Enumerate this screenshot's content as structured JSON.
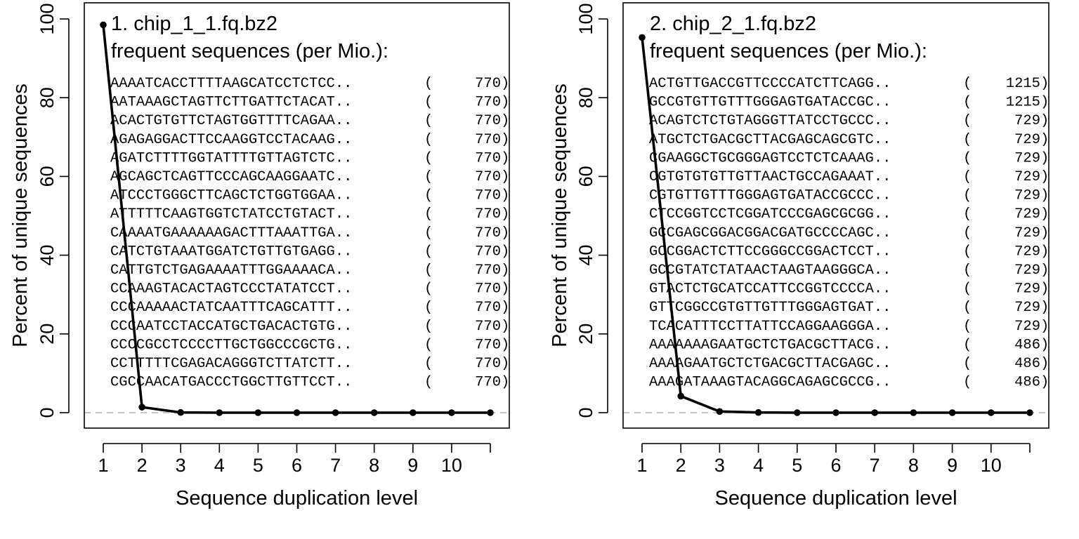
{
  "chart_data": [
    {
      "type": "line",
      "title": "1. chip_1_1.fq.bz2",
      "subtitle": "frequent sequences (per Mio.):",
      "xlabel": "Sequence duplication level",
      "ylabel": "Percent of unique sequences",
      "xlim": [
        1,
        11
      ],
      "ylim": [
        0,
        100
      ],
      "x_ticks": [
        "1",
        "2",
        "3",
        "4",
        "5",
        "6",
        "7",
        "8",
        "9",
        "10"
      ],
      "y_ticks": [
        "0",
        "20",
        "40",
        "60",
        "80",
        "100"
      ],
      "x": [
        1,
        2,
        3,
        4,
        5,
        6,
        7,
        8,
        9,
        10,
        11
      ],
      "values": [
        98.5,
        1.4,
        0.05,
        0,
        0,
        0,
        0,
        0,
        0,
        0,
        0
      ],
      "reference_line_y": 0,
      "sequences": [
        {
          "seq": "AAAATCACCTTTTAAGCATCCTCTCC..",
          "count": "770"
        },
        {
          "seq": "AATAAAGCTAGTTCTTGATTCTACAT..",
          "count": "770"
        },
        {
          "seq": "ACACTGTGTTCTAGTGGTTTTCAGAA..",
          "count": "770"
        },
        {
          "seq": "AGAGAGGACTTCCAAGGTCCTACAAG..",
          "count": "770"
        },
        {
          "seq": "AGATCTTTTGGTATTTTGTTAGTCTC..",
          "count": "770"
        },
        {
          "seq": "AGCAGCTCAGTTCCCAGCAAGGAATC..",
          "count": "770"
        },
        {
          "seq": "ATCCCTGGGCTTCAGCTCTGGTGGAA..",
          "count": "770"
        },
        {
          "seq": "ATTTTTCAAGTGGTCTATCCTGTACT..",
          "count": "770"
        },
        {
          "seq": "CAAAATGAAAAAAGACTTTAAATTGA..",
          "count": "770"
        },
        {
          "seq": "CATCTGTAAATGGATCTGTTGTGAGG..",
          "count": "770"
        },
        {
          "seq": "CATTGTCTGAGAAAATTTGGAAAACA..",
          "count": "770"
        },
        {
          "seq": "CCAAAGTACACTAGTCCCTATATCCT..",
          "count": "770"
        },
        {
          "seq": "CCCAAAAACTATCAATTTCAGCATTT..",
          "count": "770"
        },
        {
          "seq": "CCCAATCCTACCATGCTGACACTGTG..",
          "count": "770"
        },
        {
          "seq": "CCCCGCCTCCCCTTGCTGGCCCGCTG..",
          "count": "770"
        },
        {
          "seq": "CCTTTTTCGAGACAGGGTCTTATCTT..",
          "count": "770"
        },
        {
          "seq": "CGCCAACATGACCCTGGCTTGTTCCT..",
          "count": "770"
        }
      ]
    },
    {
      "type": "line",
      "title": "2. chip_2_1.fq.bz2",
      "subtitle": "frequent sequences (per Mio.):",
      "xlabel": "Sequence duplication level",
      "ylabel": "Percent of unique sequences",
      "xlim": [
        1,
        11
      ],
      "ylim": [
        0,
        100
      ],
      "x_ticks": [
        "1",
        "2",
        "3",
        "4",
        "5",
        "6",
        "7",
        "8",
        "9",
        "10"
      ],
      "y_ticks": [
        "0",
        "20",
        "40",
        "60",
        "80",
        "100"
      ],
      "x": [
        1,
        2,
        3,
        4,
        5,
        6,
        7,
        8,
        9,
        10,
        11
      ],
      "values": [
        95.3,
        4.2,
        0.3,
        0.05,
        0,
        0,
        0,
        0,
        0,
        0,
        0
      ],
      "reference_line_y": 0,
      "sequences": [
        {
          "seq": "ACTGTTGACCGTTCCCCATCTTCAGG..",
          "count": "1215"
        },
        {
          "seq": "GCCGTGTTGTTTGGGAGTGATACCGC..",
          "count": "1215"
        },
        {
          "seq": "ACAGTCTCTGTAGGGTTATCCTGCCC..",
          "count": "729"
        },
        {
          "seq": "ATGCTCTGACGCTTACGAGCAGCGTC..",
          "count": "729"
        },
        {
          "seq": "CGAAGGCTGCGGGAGTCCTCTCAAAG..",
          "count": "729"
        },
        {
          "seq": "CGTGTGTGTTGTTAACTGCCAGAAAT..",
          "count": "729"
        },
        {
          "seq": "CGTGTTGTTTGGGAGTGATACCGCCC..",
          "count": "729"
        },
        {
          "seq": "CTCCGGTCCTCGGATCCCGAGCGCGG..",
          "count": "729"
        },
        {
          "seq": "GCCGAGCGGACGGACGATGCCCCAGC..",
          "count": "729"
        },
        {
          "seq": "GCCGGACTCTTCCGGGCCGGACTCCT..",
          "count": "729"
        },
        {
          "seq": "GCCGTATCTATAACTAAGTAAGGGCA..",
          "count": "729"
        },
        {
          "seq": "GTACTCTGCATCCATTCCGGTCCCCA..",
          "count": "729"
        },
        {
          "seq": "GTTCGGCCGTGTTGTTTGGGAGTGAT..",
          "count": "729"
        },
        {
          "seq": "TCACATTTCCTTATTCCAGGAAGGGA..",
          "count": "729"
        },
        {
          "seq": "AAAAAAAGAATGCTCTGACGCTTACG..",
          "count": "486"
        },
        {
          "seq": "AAAAGAATGCTCTGACGCTTACGAGC..",
          "count": "486"
        },
        {
          "seq": "AAAGATAAAGTACAGGCAGAGCGCCG..",
          "count": "486"
        }
      ]
    }
  ]
}
